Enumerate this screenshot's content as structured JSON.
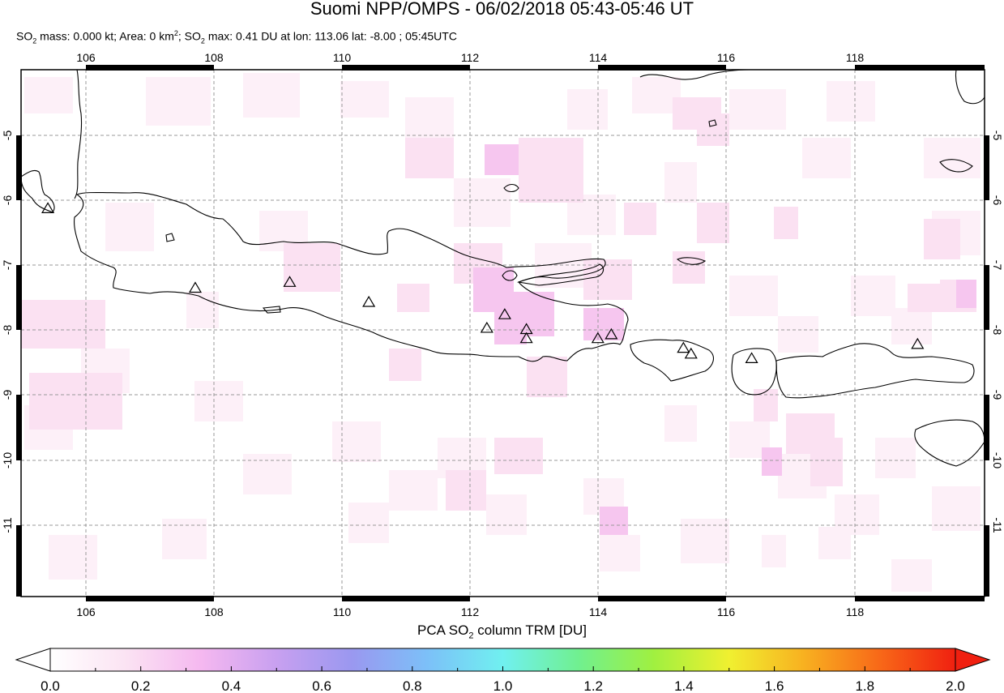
{
  "title": "Suomi NPP/OMPS - 06/02/2018 05:43-05:46 UT",
  "subtitle": {
    "so2_mass_label": "SO",
    "so2_mass_rest": " mass: 0.000 kt; Area: 0 km",
    "area_sup": "2",
    "so2_max_label": "; SO",
    "so2_max_rest": " max: 0.41 DU at lon: 113.06 lat: -8.00 ; 05:45UTC",
    "sub_2": "2"
  },
  "map": {
    "lon_ticks": [
      "106",
      "108",
      "110",
      "112",
      "114",
      "116",
      "118"
    ],
    "lat_ticks": [
      "-5",
      "-6",
      "-7",
      "-8",
      "-9",
      "-10",
      "-11"
    ],
    "lon_range": [
      105,
      120.1
    ],
    "lat_range": [
      -12.1,
      -3.95
    ],
    "grid": true,
    "volcanoes": [
      {
        "lon": 105.42,
        "lat": -6.1
      },
      {
        "lon": 107.73,
        "lat": -7.33
      },
      {
        "lon": 109.21,
        "lat": -7.24
      },
      {
        "lon": 110.45,
        "lat": -7.55
      },
      {
        "lon": 112.3,
        "lat": -7.95
      },
      {
        "lon": 112.58,
        "lat": -7.74
      },
      {
        "lon": 112.92,
        "lat": -7.97
      },
      {
        "lon": 112.92,
        "lat": -8.11
      },
      {
        "lon": 114.04,
        "lat": -8.11
      },
      {
        "lon": 114.25,
        "lat": -8.05
      },
      {
        "lon": 115.38,
        "lat": -8.26
      },
      {
        "lon": 115.5,
        "lat": -8.35
      },
      {
        "lon": 116.45,
        "lat": -8.42
      },
      {
        "lon": 119.05,
        "lat": -8.2
      }
    ]
  },
  "colorbar": {
    "title_pre": "PCA SO",
    "title_sub": "2",
    "title_post": " column TRM [DU]",
    "ticks": [
      "0.0",
      "0.2",
      "0.4",
      "0.6",
      "0.8",
      "1.0",
      "1.2",
      "1.4",
      "1.6",
      "1.8",
      "2.0"
    ],
    "range": [
      0,
      2
    ],
    "colors": [
      "#ffffff",
      "#fbe3f3",
      "#f5b8f0",
      "#c8a0f0",
      "#9a98f0",
      "#7cc0f8",
      "#70f0f0",
      "#70f090",
      "#a0f040",
      "#f0f030",
      "#f8b020",
      "#f86818",
      "#f02010"
    ]
  }
}
